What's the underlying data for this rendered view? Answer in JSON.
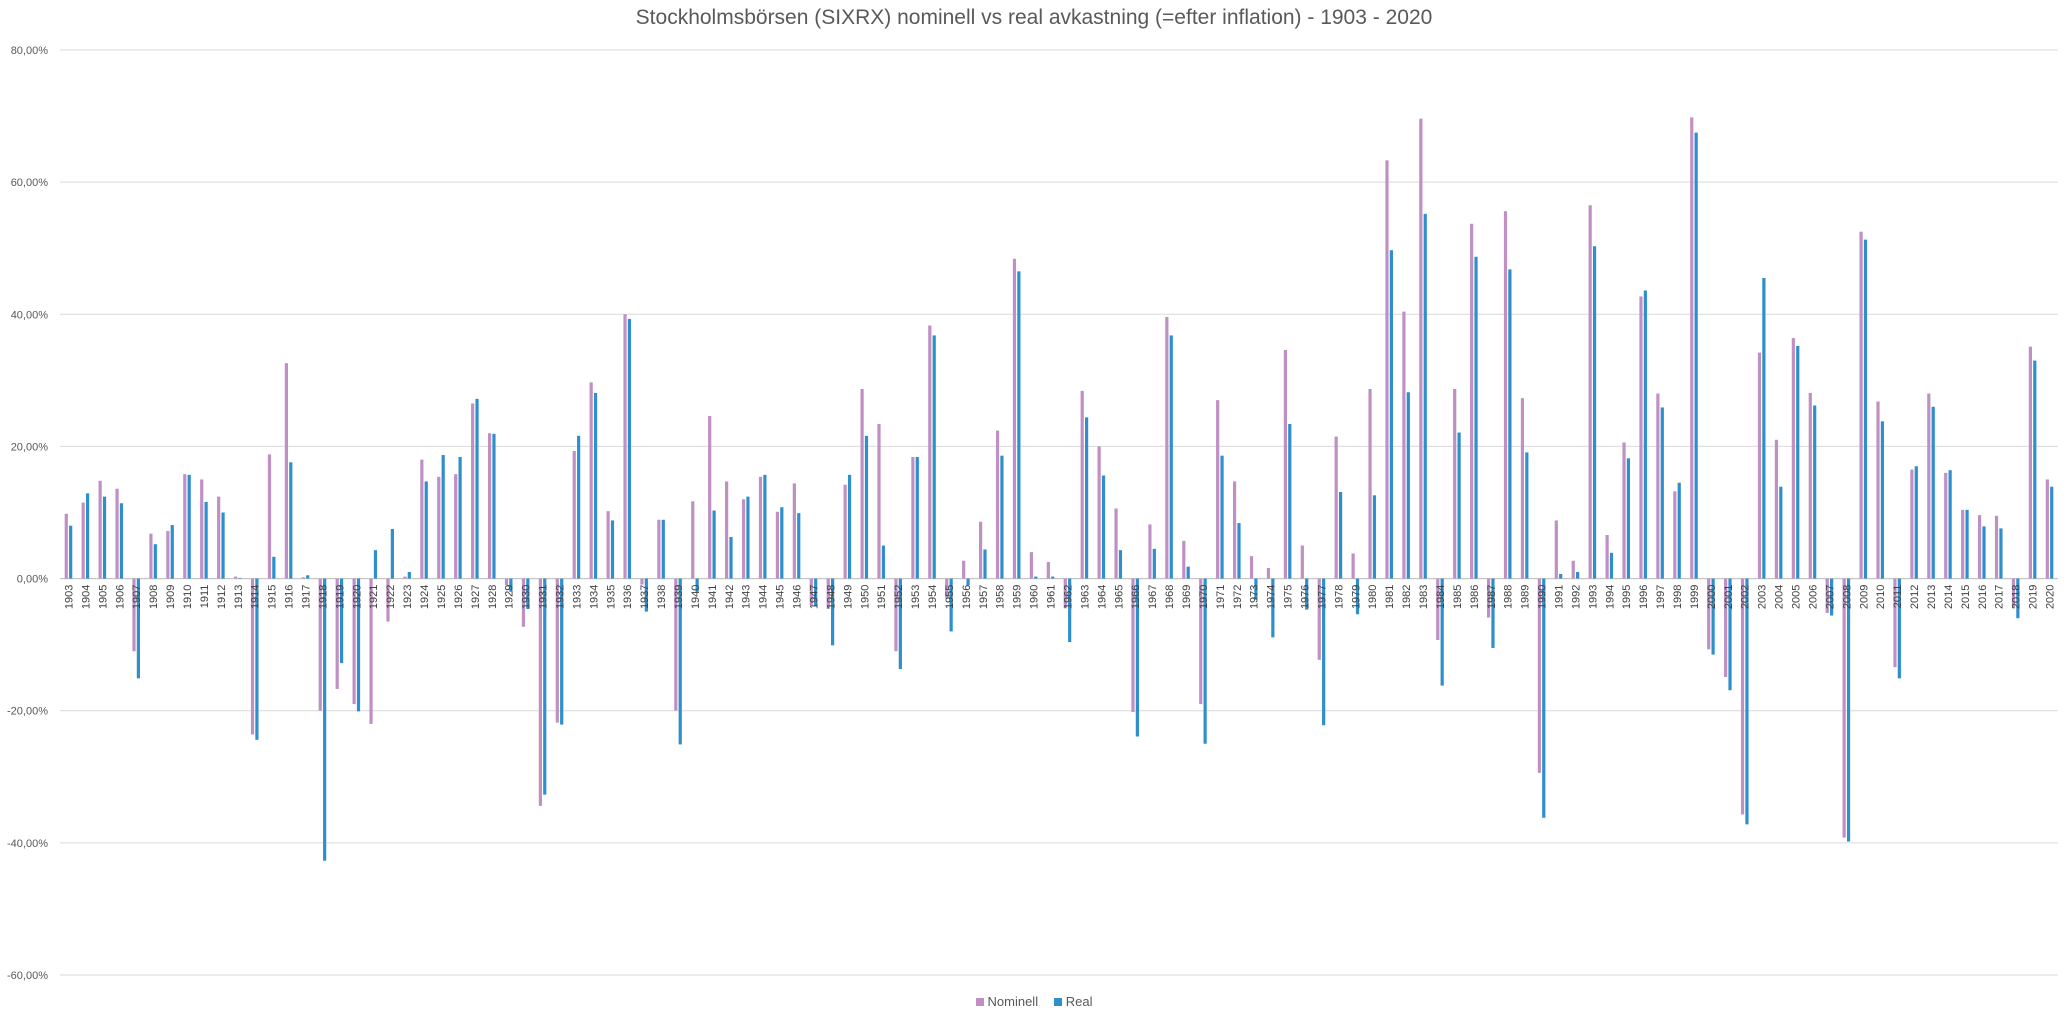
{
  "chart_data": {
    "type": "bar",
    "title": "Stockholmsbörsen (SIXRX) nominell vs real avkastning (=efter inflation) - 1903 - 2020",
    "xlabel": "",
    "ylabel": "",
    "ylim": [
      -60,
      80
    ],
    "yticks": [
      -60,
      -40,
      -20,
      0,
      20,
      40,
      60,
      80
    ],
    "ytick_labels": [
      "-60,00%",
      "-40,00%",
      "-20,00%",
      "0,00%",
      "20,00%",
      "40,00%",
      "60,00%",
      "80,00%"
    ],
    "grid": true,
    "legend": "bottom-center",
    "categories": [
      "1903",
      "1904",
      "1905",
      "1906",
      "1907",
      "1908",
      "1909",
      "1910",
      "1911",
      "1912",
      "1913",
      "1914",
      "1915",
      "1916",
      "1917",
      "1918",
      "1919",
      "1920",
      "1921",
      "1922",
      "1923",
      "1924",
      "1925",
      "1926",
      "1927",
      "1928",
      "1929",
      "1930",
      "1931",
      "1932",
      "1933",
      "1934",
      "1935",
      "1936",
      "1937",
      "1938",
      "1939",
      "1940",
      "1941",
      "1942",
      "1943",
      "1944",
      "1945",
      "1946",
      "1947",
      "1948",
      "1949",
      "1950",
      "1951",
      "1952",
      "1953",
      "1954",
      "1955",
      "1956",
      "1957",
      "1958",
      "1959",
      "1960",
      "1961",
      "1962",
      "1963",
      "1964",
      "1965",
      "1966",
      "1967",
      "1968",
      "1969",
      "1970",
      "1971",
      "1972",
      "1973",
      "1974",
      "1975",
      "1976",
      "1977",
      "1978",
      "1979",
      "1980",
      "1981",
      "1982",
      "1983",
      "1984",
      "1985",
      "1986",
      "1987",
      "1988",
      "1989",
      "1990",
      "1991",
      "1992",
      "1993",
      "1994",
      "1995",
      "1996",
      "1997",
      "1998",
      "1999",
      "2000",
      "2001",
      "2002",
      "2003",
      "2004",
      "2005",
      "2006",
      "2007",
      "2008",
      "2009",
      "2010",
      "2011",
      "2012",
      "2013",
      "2014",
      "2015",
      "2016",
      "2017",
      "2018",
      "2019",
      "2020"
    ],
    "series": [
      {
        "name": "Nominell",
        "color": "#c08fc4",
        "values": [
          9.8,
          11.5,
          14.8,
          13.6,
          -11,
          6.8,
          7.2,
          15.8,
          15,
          12.4,
          0.3,
          -23.6,
          18.8,
          32.6,
          0.2,
          -20,
          -16.7,
          -19,
          -22,
          -6.5,
          0.3,
          18,
          15.4,
          15.8,
          26.5,
          22,
          -1,
          -7.3,
          -34.4,
          -21.8,
          19.3,
          29.7,
          10.2,
          40,
          -0.9,
          8.9,
          -20,
          11.7,
          24.6,
          14.7,
          12,
          15.4,
          10.1,
          14.4,
          -4,
          -4.6,
          14.2,
          28.7,
          23.4,
          -11,
          18.4,
          38.3,
          -3,
          2.7,
          8.6,
          22.4,
          48.4,
          4,
          2.5,
          -4.5,
          28.4,
          20,
          10.6,
          -20.2,
          8.2,
          39.6,
          5.7,
          -19,
          27,
          14.7,
          3.4,
          1.6,
          34.6,
          5,
          -12.3,
          21.5,
          3.8,
          28.7,
          63.3,
          40.4,
          69.6,
          -9.3,
          28.7,
          53.7,
          -5.9,
          55.6,
          27.3,
          -29.4,
          8.8,
          2.7,
          56.5,
          6.6,
          20.6,
          42.7,
          28,
          13.2,
          69.8,
          -10.7,
          -14.9,
          -35.7,
          34.2,
          21,
          36.4,
          28.1,
          -5.2,
          -39.2,
          52.5,
          26.8,
          -13.4,
          16.5,
          28,
          16,
          10.4,
          9.6,
          9.5,
          -4.5,
          35.1,
          15
        ]
      },
      {
        "name": "Real",
        "color": "#2e8fcc",
        "values": [
          8,
          12.9,
          12.4,
          11.4,
          -15.1,
          5.2,
          8.1,
          15.7,
          11.6,
          10,
          0.1,
          -24.4,
          3.3,
          17.6,
          0.5,
          -42.7,
          -12.8,
          -20.1,
          4.3,
          7.5,
          1,
          14.7,
          18.7,
          18.4,
          27.2,
          21.9,
          -2,
          -4.6,
          -32.7,
          -22.1,
          21.6,
          28.1,
          8.8,
          39.3,
          -5,
          8.9,
          -25.1,
          -2,
          10.3,
          6.3,
          12.4,
          15.7,
          10.8,
          9.9,
          -4.2,
          -10.1,
          15.7,
          21.6,
          5,
          -13.7,
          18.4,
          36.8,
          -8,
          -1,
          4.4,
          18.6,
          46.5,
          0.3,
          0.3,
          -9.6,
          24.4,
          15.6,
          4.3,
          -23.9,
          4.5,
          36.8,
          1.8,
          -25,
          18.6,
          8.4,
          -3.2,
          -8.9,
          23.4,
          -4.7,
          -22.2,
          13.1,
          -5.4,
          12.6,
          49.7,
          28.2,
          55.2,
          -16.2,
          22.1,
          48.7,
          -10.5,
          46.8,
          19.1,
          -36.2,
          0.7,
          1,
          50.3,
          3.9,
          18.2,
          43.6,
          25.9,
          14.5,
          67.5,
          -11.5,
          -16.9,
          -37.2,
          45.5,
          13.9,
          35.2,
          26.2,
          -5.6,
          -39.8,
          51.3,
          23.8,
          -15.1,
          17,
          26,
          16.4,
          10.4,
          7.9,
          7.6,
          -6,
          33,
          13.9
        ]
      }
    ]
  }
}
